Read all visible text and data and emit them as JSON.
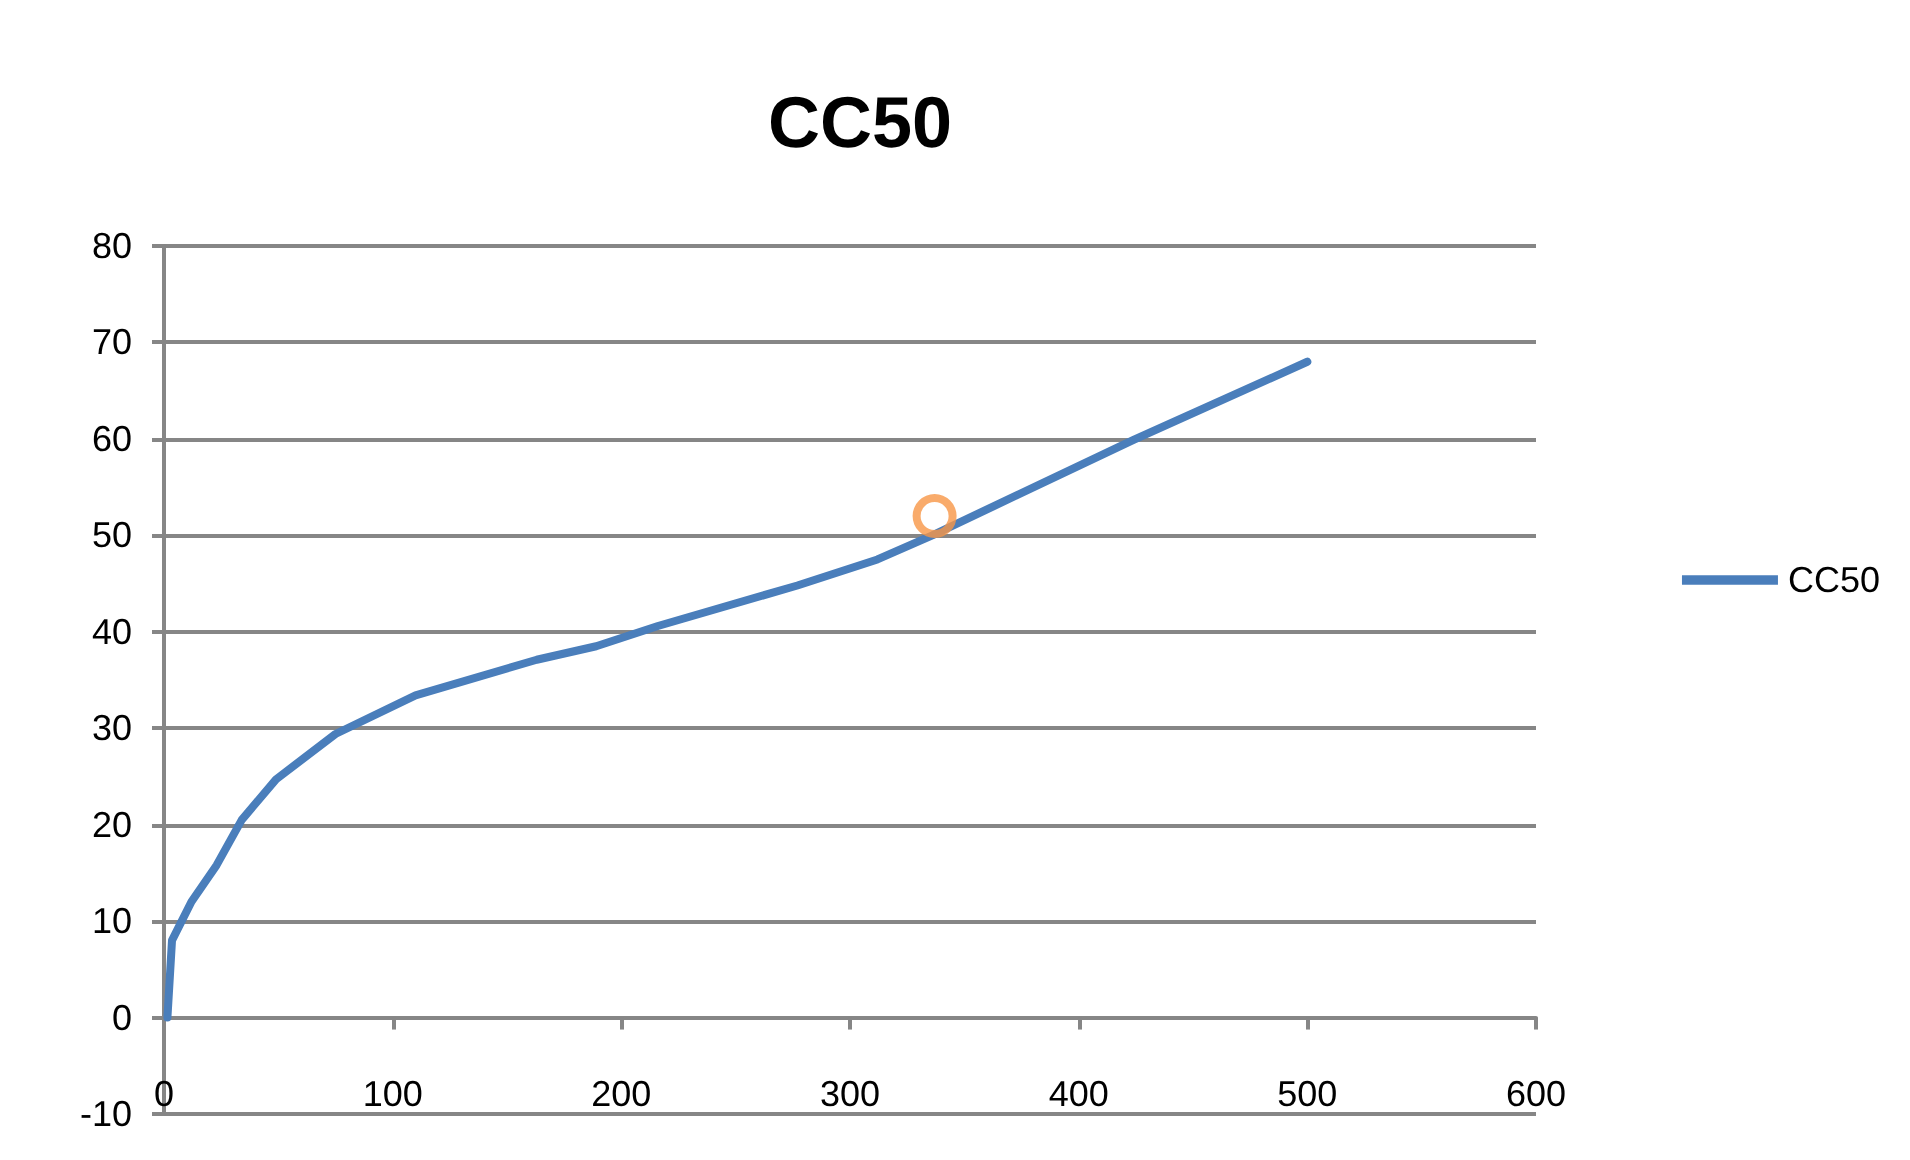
{
  "chart_data": {
    "type": "line",
    "title": "CC50",
    "xlim": [
      0,
      600
    ],
    "xticks": [
      0,
      100,
      200,
      300,
      400,
      500,
      600
    ],
    "ylim": [
      -10,
      80
    ],
    "yticks": [
      -10,
      0,
      10,
      20,
      30,
      40,
      50,
      60,
      70,
      80
    ],
    "grid": "y",
    "legend": "right",
    "marker": "none",
    "line_style": "solid",
    "series": [
      {
        "name": "CC50",
        "color": "#4a7ebb",
        "x": [
          1.5,
          3.5,
          12,
          23,
          34,
          49,
          75,
          110,
          163,
          189,
          216,
          277,
          312,
          336,
          424,
          500
        ],
        "values": [
          0,
          8,
          12,
          15.8,
          20.5,
          24.7,
          29.4,
          33.4,
          37.1,
          38.5,
          40.6,
          44.8,
          47.5,
          50,
          59.9,
          68
        ]
      },
      {
        "type": "scatter",
        "marker": "circle",
        "color": "#f79646",
        "x": [
          337
        ],
        "values": [
          52
        ]
      }
    ]
  }
}
